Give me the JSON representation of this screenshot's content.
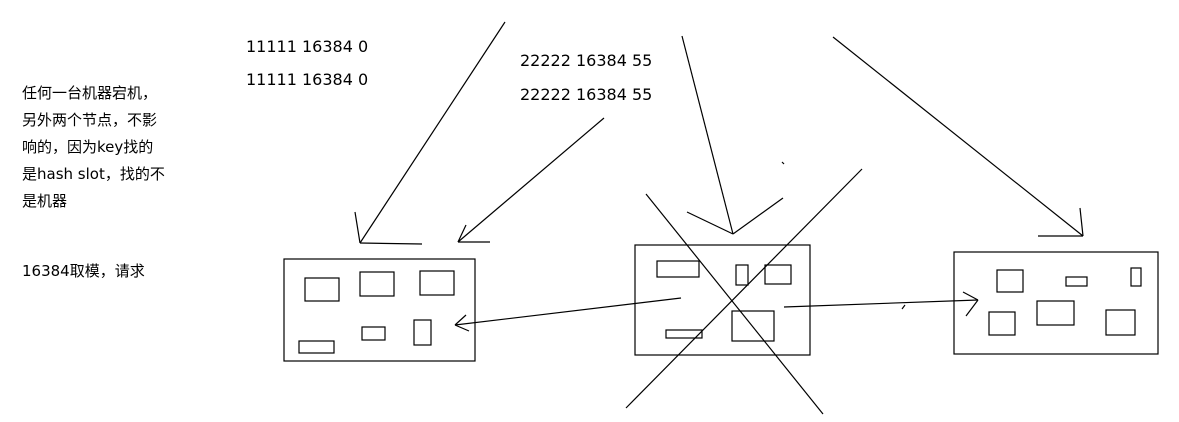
{
  "note": {
    "lines": [
      "任何一台机器宕机，",
      "另外两个节点，不影",
      "响的，因为key找的",
      "是hash slot，找的不",
      "是机器"
    ],
    "modulo": "16384取模，请求"
  },
  "request_a": {
    "line1": "11111 16384 0",
    "line2": "11111 16384 0"
  },
  "request_b": {
    "line1": "22222 16384 55",
    "line2": "22222 16384 55"
  }
}
